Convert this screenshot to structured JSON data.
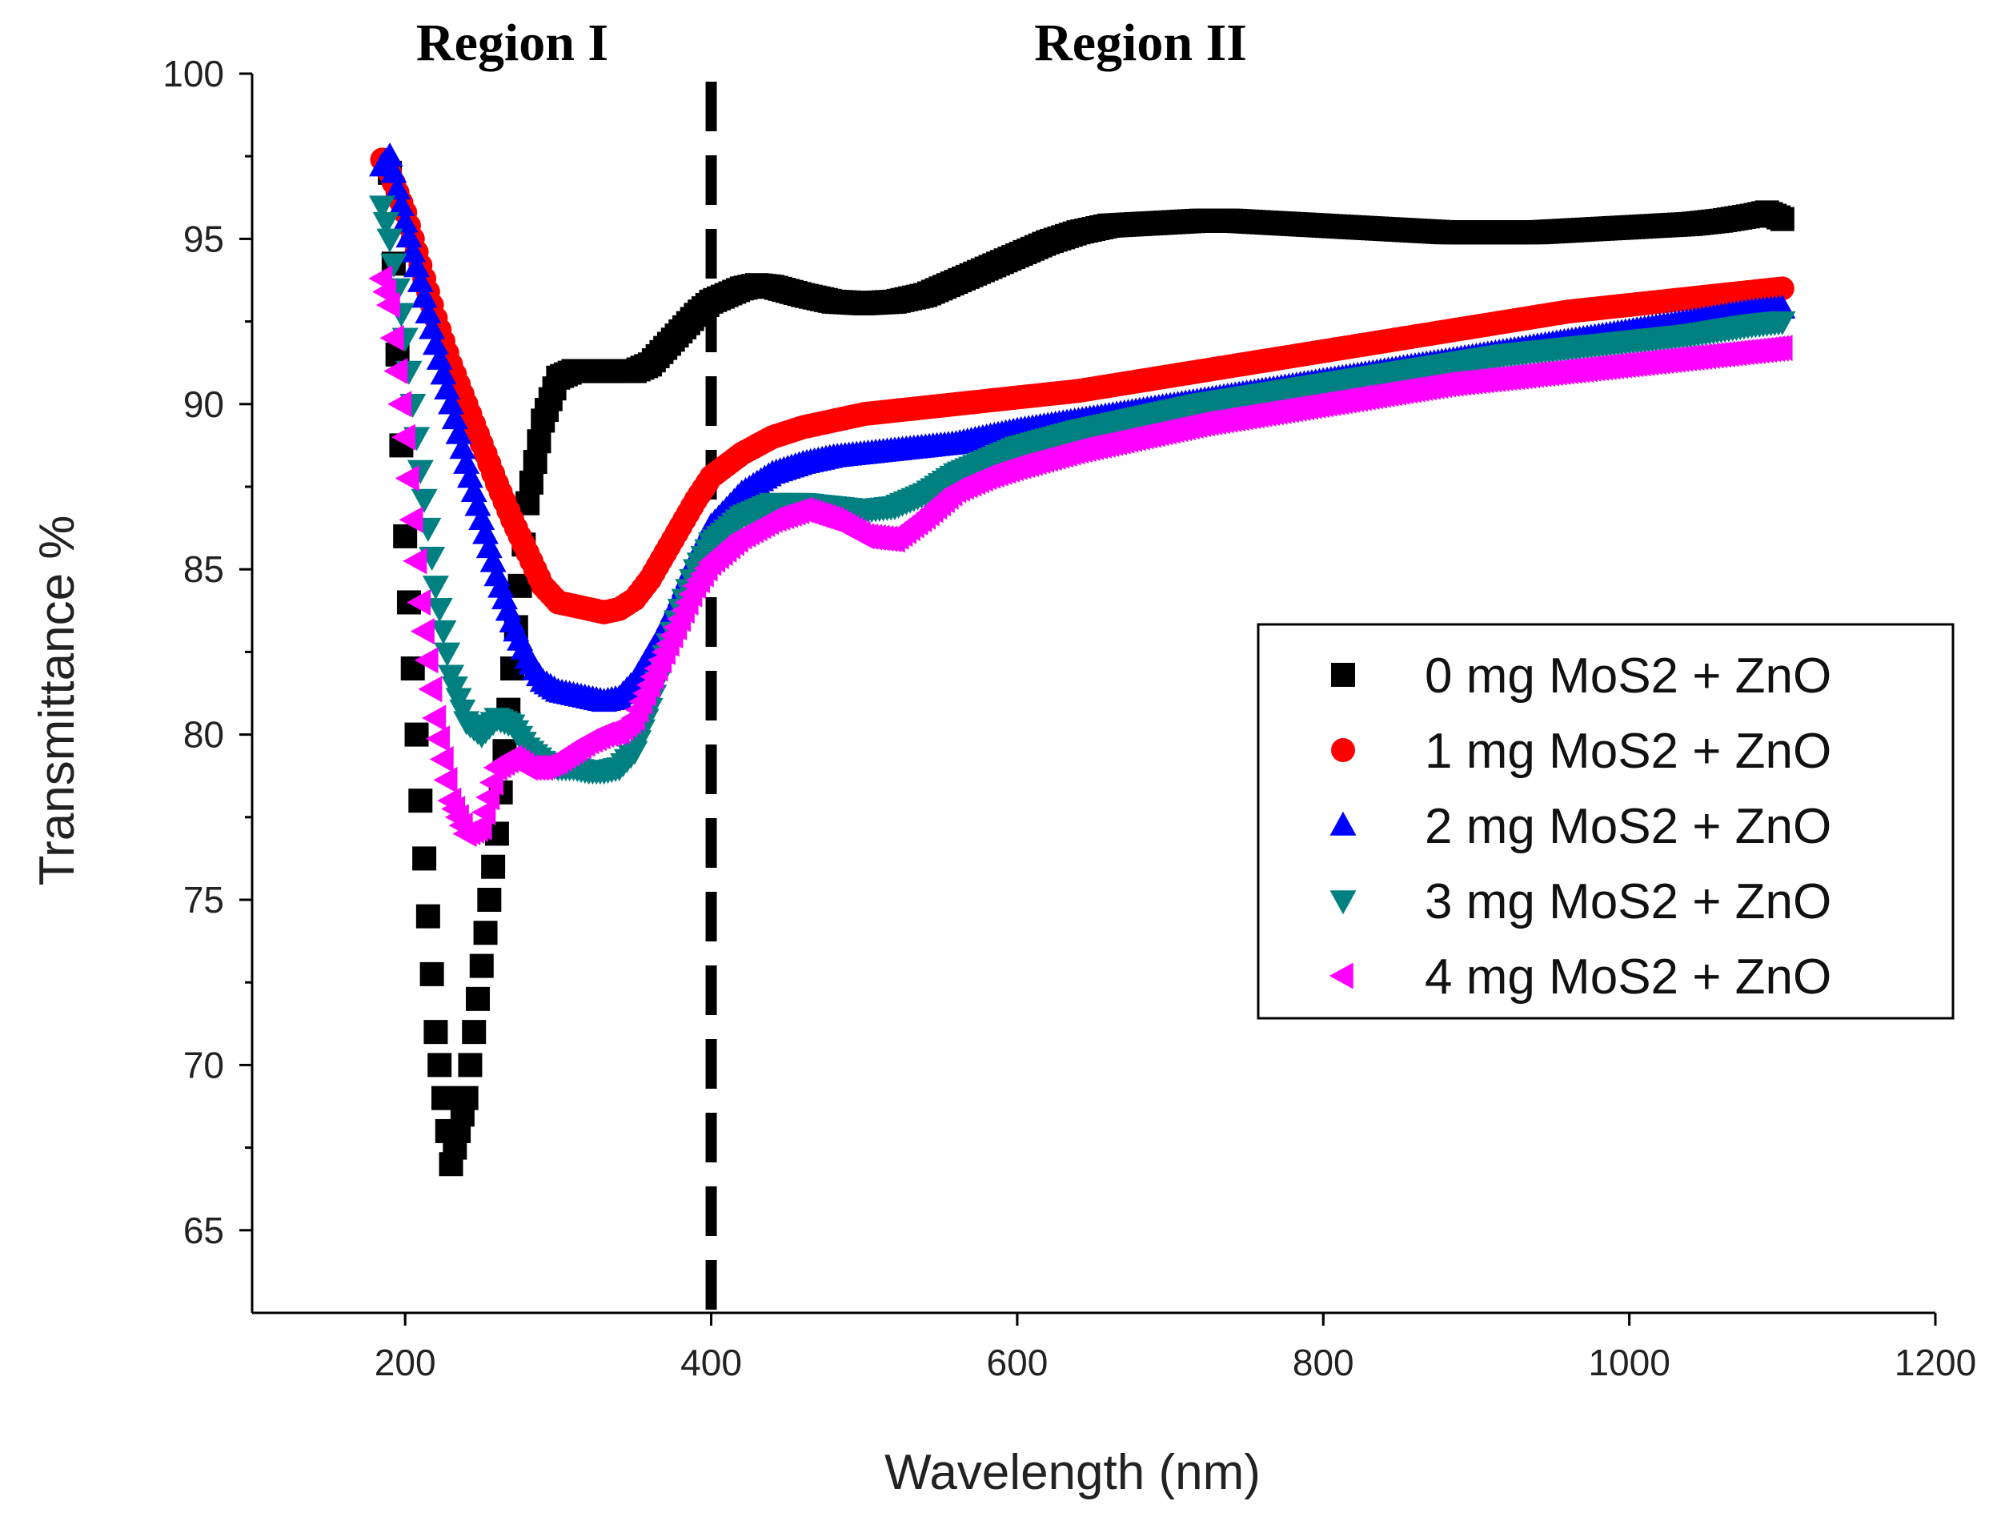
{
  "chart_data": {
    "type": "scatter",
    "title": "",
    "xlabel": "Wavelength (nm)",
    "ylabel": "Transmittance %",
    "xlim": [
      100,
      1200
    ],
    "ylim": [
      62.5,
      100
    ],
    "xticks": [
      200,
      400,
      600,
      800,
      1000,
      1200
    ],
    "yticks": [
      65,
      70,
      75,
      80,
      85,
      90,
      95,
      100
    ],
    "grid": false,
    "legend_position": "center-right",
    "annotations": [
      {
        "text": "Region I",
        "x": 260
      },
      {
        "text": "Region II",
        "x": 380
      }
    ],
    "divider_x": 400,
    "series": [
      {
        "name": "0 mg MoS2 + ZnO",
        "marker": "square",
        "color": "#000000",
        "points": [
          [
            190,
            97
          ],
          [
            200,
            86
          ],
          [
            210,
            78
          ],
          [
            220,
            71
          ],
          [
            230,
            67
          ],
          [
            240,
            69
          ],
          [
            250,
            73
          ],
          [
            260,
            77
          ],
          [
            270,
            82
          ],
          [
            280,
            87
          ],
          [
            290,
            89.5
          ],
          [
            300,
            90.8
          ],
          [
            310,
            91
          ],
          [
            320,
            91
          ],
          [
            330,
            91
          ],
          [
            340,
            91
          ],
          [
            350,
            91
          ],
          [
            360,
            91.2
          ],
          [
            370,
            91.7
          ],
          [
            380,
            92.2
          ],
          [
            390,
            92.7
          ],
          [
            400,
            93.1
          ],
          [
            410,
            93.3
          ],
          [
            420,
            93.5
          ],
          [
            430,
            93.6
          ],
          [
            440,
            93.55
          ],
          [
            460,
            93.3
          ],
          [
            480,
            93.1
          ],
          [
            500,
            93.05
          ],
          [
            520,
            93.1
          ],
          [
            540,
            93.3
          ],
          [
            560,
            93.7
          ],
          [
            580,
            94.1
          ],
          [
            600,
            94.5
          ],
          [
            620,
            94.9
          ],
          [
            640,
            95.2
          ],
          [
            660,
            95.4
          ],
          [
            680,
            95.45
          ],
          [
            700,
            95.5
          ],
          [
            720,
            95.55
          ],
          [
            740,
            95.55
          ],
          [
            760,
            95.5
          ],
          [
            780,
            95.45
          ],
          [
            800,
            95.4
          ],
          [
            820,
            95.35
          ],
          [
            840,
            95.3
          ],
          [
            860,
            95.25
          ],
          [
            880,
            95.2
          ],
          [
            900,
            95.2
          ],
          [
            920,
            95.2
          ],
          [
            940,
            95.2
          ],
          [
            960,
            95.25
          ],
          [
            980,
            95.3
          ],
          [
            1000,
            95.35
          ],
          [
            1020,
            95.4
          ],
          [
            1040,
            95.45
          ],
          [
            1060,
            95.55
          ],
          [
            1080,
            95.7
          ],
          [
            1090,
            95.8
          ],
          [
            1100,
            95.6
          ]
        ]
      },
      {
        "name": "1 mg MoS2 + ZnO",
        "marker": "circle",
        "color": "#ff0000",
        "points": [
          [
            185,
            97.4
          ],
          [
            190,
            97
          ],
          [
            200,
            95.8
          ],
          [
            210,
            94.2
          ],
          [
            220,
            92.6
          ],
          [
            230,
            91.2
          ],
          [
            240,
            90
          ],
          [
            250,
            88.8
          ],
          [
            260,
            87.6
          ],
          [
            270,
            86.5
          ],
          [
            280,
            85.5
          ],
          [
            290,
            84.5
          ],
          [
            300,
            84
          ],
          [
            310,
            83.9
          ],
          [
            320,
            83.8
          ],
          [
            330,
            83.7
          ],
          [
            340,
            83.8
          ],
          [
            350,
            84.1
          ],
          [
            360,
            84.7
          ],
          [
            370,
            85.5
          ],
          [
            380,
            86.3
          ],
          [
            390,
            87.1
          ],
          [
            400,
            87.8
          ],
          [
            420,
            88.5
          ],
          [
            440,
            89
          ],
          [
            460,
            89.3
          ],
          [
            480,
            89.5
          ],
          [
            500,
            89.7
          ],
          [
            520,
            89.8
          ],
          [
            540,
            89.9
          ],
          [
            560,
            90
          ],
          [
            600,
            90.2
          ],
          [
            640,
            90.4
          ],
          [
            680,
            90.7
          ],
          [
            720,
            91
          ],
          [
            760,
            91.3
          ],
          [
            800,
            91.6
          ],
          [
            840,
            91.9
          ],
          [
            880,
            92.2
          ],
          [
            920,
            92.5
          ],
          [
            960,
            92.8
          ],
          [
            1000,
            93
          ],
          [
            1040,
            93.2
          ],
          [
            1080,
            93.4
          ],
          [
            1100,
            93.5
          ]
        ]
      },
      {
        "name": "2 mg MoS2 + ZnO",
        "marker": "triangle-up",
        "color": "#0000ff",
        "points": [
          [
            185,
            97.2
          ],
          [
            190,
            97.5
          ],
          [
            200,
            95.5
          ],
          [
            210,
            93.7
          ],
          [
            220,
            91.8
          ],
          [
            230,
            90
          ],
          [
            240,
            88.2
          ],
          [
            250,
            86.5
          ],
          [
            260,
            84.8
          ],
          [
            270,
            83.4
          ],
          [
            280,
            82.3
          ],
          [
            290,
            81.6
          ],
          [
            300,
            81.3
          ],
          [
            310,
            81.2
          ],
          [
            320,
            81.1
          ],
          [
            330,
            81
          ],
          [
            340,
            81.1
          ],
          [
            350,
            81.6
          ],
          [
            360,
            82.4
          ],
          [
            370,
            83.2
          ],
          [
            380,
            84.2
          ],
          [
            390,
            85.3
          ],
          [
            400,
            86.3
          ],
          [
            420,
            87.3
          ],
          [
            440,
            87.9
          ],
          [
            460,
            88.2
          ],
          [
            480,
            88.4
          ],
          [
            500,
            88.5
          ],
          [
            520,
            88.6
          ],
          [
            540,
            88.7
          ],
          [
            560,
            88.8
          ],
          [
            600,
            89.2
          ],
          [
            640,
            89.5
          ],
          [
            680,
            89.8
          ],
          [
            720,
            90.1
          ],
          [
            760,
            90.4
          ],
          [
            800,
            90.7
          ],
          [
            840,
            91
          ],
          [
            880,
            91.3
          ],
          [
            920,
            91.6
          ],
          [
            960,
            91.9
          ],
          [
            1000,
            92.2
          ],
          [
            1040,
            92.5
          ],
          [
            1080,
            92.8
          ],
          [
            1100,
            92.9
          ]
        ]
      },
      {
        "name": "3 mg MoS2 + ZnO",
        "marker": "triangle-down",
        "color": "#008080",
        "points": [
          [
            185,
            96
          ],
          [
            190,
            95
          ],
          [
            200,
            92
          ],
          [
            210,
            88
          ],
          [
            220,
            84.5
          ],
          [
            230,
            81.8
          ],
          [
            240,
            80.4
          ],
          [
            250,
            80
          ],
          [
            260,
            80.5
          ],
          [
            270,
            80.3
          ],
          [
            280,
            79.6
          ],
          [
            290,
            79.2
          ],
          [
            300,
            79
          ],
          [
            310,
            79
          ],
          [
            320,
            78.9
          ],
          [
            330,
            78.9
          ],
          [
            340,
            79
          ],
          [
            350,
            79.5
          ],
          [
            360,
            80.8
          ],
          [
            370,
            82.4
          ],
          [
            380,
            83.8
          ],
          [
            390,
            85
          ],
          [
            400,
            85.8
          ],
          [
            420,
            86.6
          ],
          [
            440,
            87
          ],
          [
            460,
            87
          ],
          [
            480,
            86.9
          ],
          [
            500,
            86.8
          ],
          [
            520,
            86.9
          ],
          [
            540,
            87.3
          ],
          [
            560,
            87.9
          ],
          [
            580,
            88.3
          ],
          [
            600,
            88.7
          ],
          [
            640,
            89.2
          ],
          [
            680,
            89.6
          ],
          [
            720,
            90
          ],
          [
            760,
            90.3
          ],
          [
            800,
            90.6
          ],
          [
            840,
            90.9
          ],
          [
            880,
            91.2
          ],
          [
            920,
            91.5
          ],
          [
            960,
            91.7
          ],
          [
            1000,
            91.9
          ],
          [
            1040,
            92.1
          ],
          [
            1080,
            92.4
          ],
          [
            1100,
            92.5
          ]
        ]
      },
      {
        "name": "4 mg MoS2 + ZnO",
        "marker": "triangle-left",
        "color": "#ff00ff",
        "points": [
          [
            185,
            93.8
          ],
          [
            190,
            93
          ],
          [
            200,
            89
          ],
          [
            210,
            84
          ],
          [
            220,
            80.5
          ],
          [
            230,
            78
          ],
          [
            240,
            77
          ],
          [
            250,
            77.2
          ],
          [
            260,
            79
          ],
          [
            270,
            79.3
          ],
          [
            280,
            79
          ],
          [
            290,
            79
          ],
          [
            300,
            79.2
          ],
          [
            310,
            79.5
          ],
          [
            320,
            79.8
          ],
          [
            330,
            80
          ],
          [
            340,
            80.1
          ],
          [
            350,
            80.5
          ],
          [
            360,
            81.5
          ],
          [
            370,
            82.5
          ],
          [
            380,
            83.5
          ],
          [
            390,
            84.5
          ],
          [
            400,
            85.2
          ],
          [
            420,
            86
          ],
          [
            440,
            86.5
          ],
          [
            460,
            86.8
          ],
          [
            480,
            86.5
          ],
          [
            500,
            86
          ],
          [
            520,
            85.9
          ],
          [
            540,
            86.6
          ],
          [
            560,
            87.4
          ],
          [
            580,
            87.8
          ],
          [
            600,
            88.1
          ],
          [
            640,
            88.6
          ],
          [
            680,
            89
          ],
          [
            720,
            89.4
          ],
          [
            760,
            89.7
          ],
          [
            800,
            90
          ],
          [
            840,
            90.3
          ],
          [
            880,
            90.6
          ],
          [
            920,
            90.8
          ],
          [
            960,
            91
          ],
          [
            1000,
            91.2
          ],
          [
            1040,
            91.4
          ],
          [
            1080,
            91.6
          ],
          [
            1100,
            91.7
          ]
        ]
      }
    ]
  }
}
